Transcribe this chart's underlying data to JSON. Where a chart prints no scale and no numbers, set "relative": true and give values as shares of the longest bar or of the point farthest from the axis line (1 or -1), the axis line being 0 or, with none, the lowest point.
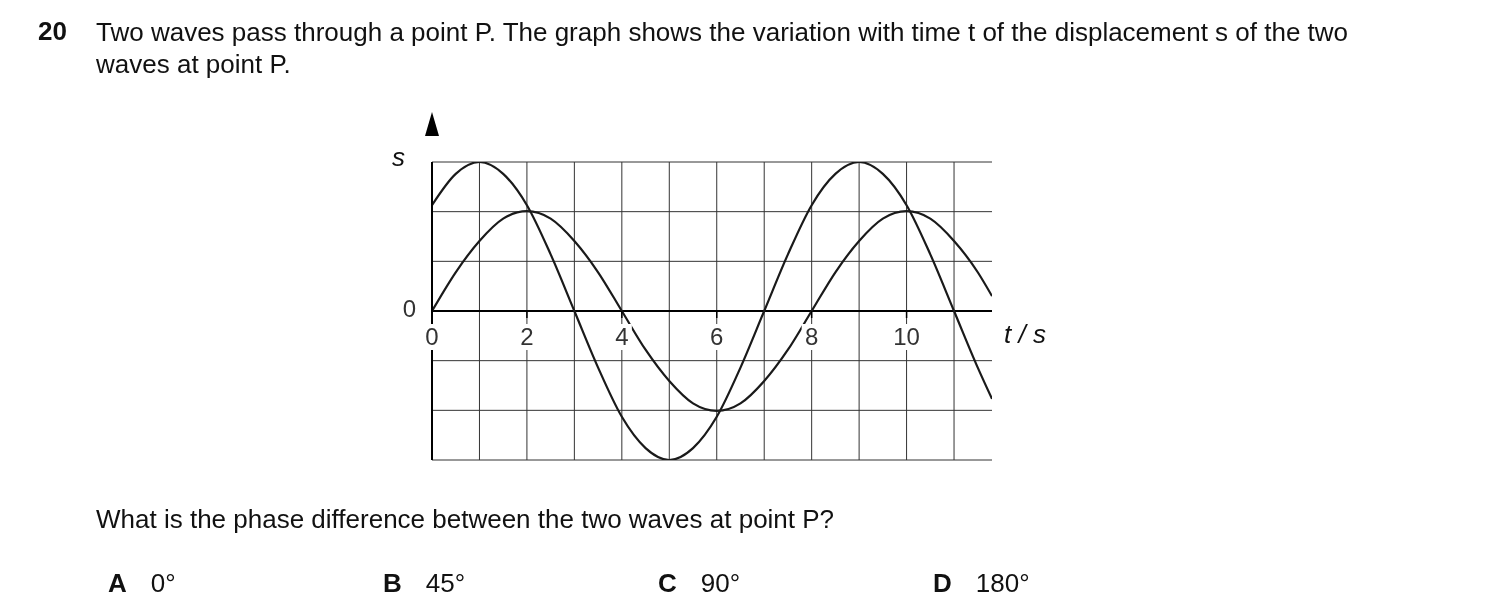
{
  "chart_data": {
    "type": "line",
    "title": "Two waves pass through a point P. The graph shows the variation with time t of the displacement s of the two waves at point P.",
    "xlabel": "t / s",
    "ylabel": "s",
    "relative": true,
    "x": [
      0,
      0.5,
      1,
      1.5,
      2,
      2.5,
      3,
      3.5,
      4,
      4.5,
      5,
      5.5,
      6,
      6.5,
      7,
      7.5,
      8,
      8.5,
      9,
      9.5,
      10,
      10.5,
      11,
      11.5,
      11.8
    ],
    "series": [
      {
        "color": "#1a1a1a",
        "values": [
          0.71,
          0.92,
          1,
          0.92,
          0.71,
          0.38,
          0,
          -0.38,
          -0.71,
          -0.92,
          -1,
          -0.92,
          -0.71,
          -0.38,
          0,
          0.38,
          0.71,
          0.92,
          1,
          0.92,
          0.71,
          0.38,
          0,
          -0.38,
          -0.59
        ]
      },
      {
        "color": "#1a1a1a",
        "values": [
          0,
          0.26,
          0.47,
          0.62,
          0.67,
          0.62,
          0.47,
          0.26,
          0,
          -0.26,
          -0.47,
          -0.62,
          -0.67,
          -0.62,
          -0.47,
          -0.26,
          0,
          0.26,
          0.47,
          0.62,
          0.67,
          0.62,
          0.47,
          0.26,
          0.1
        ]
      }
    ],
    "xlim": [
      0,
      11.8
    ],
    "xticks": [
      0,
      {
        "value": 1,
        "label": null
      },
      2,
      {
        "value": 3,
        "label": null
      },
      4,
      {
        "value": 5,
        "label": null
      },
      6,
      {
        "value": 7,
        "label": null
      },
      8,
      {
        "value": 9,
        "label": null
      },
      10,
      {
        "value": 11,
        "label": null
      }
    ],
    "grid": true,
    "legend": false,
    "marker": "none",
    "line_style": "solid",
    "annotations": [
      "20",
      "What is the phase difference between the two waves at point P?",
      "A",
      "0°",
      "B",
      "45°",
      "C",
      "90°",
      "D",
      "180°",
      "0"
    ]
  }
}
